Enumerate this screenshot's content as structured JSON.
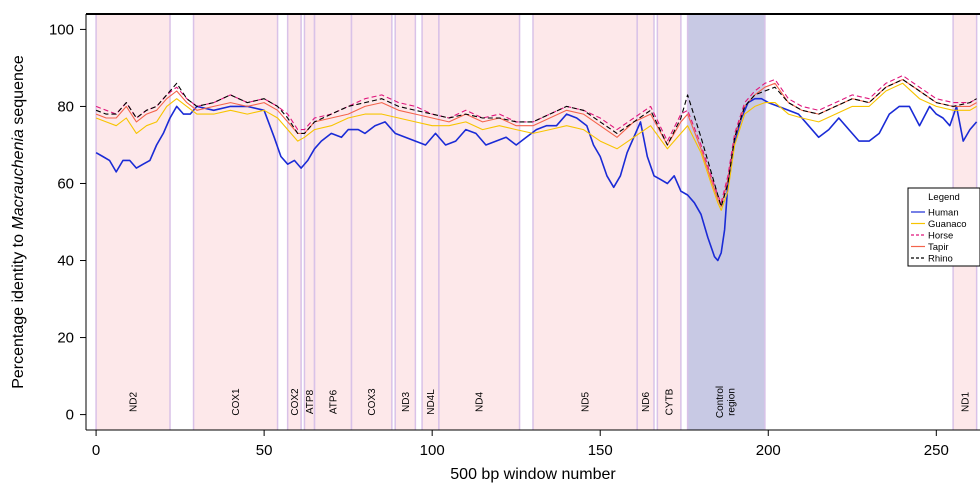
{
  "chart_data": {
    "type": "line",
    "xlabel": "500 bp window number",
    "ylabel_parts": [
      "Percentage identity to ",
      "Macrauchenia",
      " sequence"
    ],
    "xlim": [
      -3,
      263
    ],
    "ylim": [
      -4,
      104
    ],
    "xticks": [
      0,
      50,
      100,
      150,
      200,
      250
    ],
    "yticks": [
      0,
      20,
      40,
      60,
      80,
      100
    ],
    "legend": {
      "title": "Legend",
      "position": "right"
    },
    "regions": [
      {
        "label": "ND2",
        "start": 0,
        "end": 22,
        "color": "#fde8ea"
      },
      {
        "label": "COX1",
        "start": 29,
        "end": 54,
        "color": "#fde8ea"
      },
      {
        "label": "COX2",
        "start": 57,
        "end": 61,
        "color": "#fde8ea"
      },
      {
        "label": "ATP8",
        "start": 62,
        "end": 65,
        "color": "#fde8ea"
      },
      {
        "label": "ATP6",
        "start": 65,
        "end": 76,
        "color": "#fde8ea"
      },
      {
        "label": "COX3",
        "start": 76,
        "end": 88,
        "color": "#fde8ea"
      },
      {
        "label": "ND3",
        "start": 89,
        "end": 95,
        "color": "#fde8ea"
      },
      {
        "label": "ND4L",
        "start": 97,
        "end": 102,
        "color": "#fde8ea"
      },
      {
        "label": "ND4",
        "start": 102,
        "end": 126,
        "color": "#fde8ea"
      },
      {
        "label": "ND5",
        "start": 130,
        "end": 161,
        "color": "#fde8ea"
      },
      {
        "label": "ND6",
        "start": 161,
        "end": 166,
        "color": "#fde8ea"
      },
      {
        "label": "CYTB",
        "start": 167,
        "end": 174,
        "color": "#fde8ea"
      },
      {
        "label": "Control region",
        "start": 176,
        "end": 199,
        "color": "#c8c9e4"
      },
      {
        "label": "ND1",
        "start": 255,
        "end": 262,
        "color": "#fde8ea"
      }
    ],
    "series": [
      {
        "name": "Human",
        "color": "#1a2bd6",
        "dash": "",
        "width": 1.6,
        "x": [
          0,
          2,
          4,
          6,
          8,
          10,
          12,
          14,
          16,
          18,
          20,
          22,
          24,
          26,
          28,
          30,
          35,
          40,
          45,
          50,
          53,
          55,
          57,
          59,
          61,
          63,
          65,
          67,
          70,
          73,
          75,
          78,
          80,
          83,
          86,
          89,
          92,
          95,
          98,
          101,
          104,
          107,
          110,
          113,
          116,
          119,
          122,
          125,
          128,
          131,
          134,
          137,
          140,
          143,
          146,
          148,
          150,
          152,
          154,
          156,
          158,
          160,
          162,
          164,
          166,
          168,
          170,
          172,
          174,
          176,
          178,
          180,
          182,
          184,
          185,
          186,
          187,
          188,
          190,
          192,
          194,
          196,
          198,
          200,
          203,
          206,
          209,
          212,
          215,
          218,
          221,
          224,
          227,
          230,
          233,
          236,
          239,
          242,
          245,
          248,
          250,
          252,
          254,
          256,
          258,
          260,
          262
        ],
        "values": [
          68,
          67,
          66,
          63,
          66,
          66,
          64,
          65,
          66,
          70,
          73,
          77,
          80,
          78,
          78,
          80,
          79,
          80,
          80,
          79,
          72,
          67,
          65,
          66,
          64,
          66,
          69,
          71,
          73,
          72,
          74,
          74,
          73,
          75,
          76,
          73,
          72,
          71,
          70,
          73,
          70,
          71,
          74,
          73,
          70,
          71,
          72,
          70,
          72,
          74,
          75,
          75,
          78,
          77,
          75,
          70,
          67,
          62,
          59,
          62,
          68,
          72,
          76,
          67,
          62,
          61,
          60,
          62,
          58,
          57,
          55,
          52,
          46,
          41,
          40,
          42,
          48,
          60,
          71,
          77,
          81,
          82,
          82,
          81,
          80,
          79,
          78,
          75,
          72,
          74,
          77,
          74,
          71,
          71,
          73,
          78,
          80,
          80,
          75,
          80,
          78,
          77,
          75,
          80,
          71,
          74,
          76
        ]
      },
      {
        "name": "Guanaco",
        "color": "#f7c400",
        "dash": "",
        "width": 1.1,
        "x": [
          0,
          3,
          6,
          9,
          12,
          15,
          18,
          21,
          24,
          27,
          30,
          35,
          40,
          45,
          50,
          54,
          57,
          60,
          62,
          65,
          70,
          75,
          80,
          85,
          90,
          95,
          100,
          105,
          110,
          115,
          120,
          125,
          130,
          135,
          140,
          145,
          150,
          155,
          160,
          165,
          170,
          174,
          176,
          180,
          183,
          185,
          186,
          188,
          190,
          193,
          196,
          199,
          202,
          206,
          210,
          215,
          220,
          225,
          230,
          235,
          240,
          245,
          250,
          255,
          260,
          262
        ],
        "values": [
          77,
          76,
          75,
          77,
          73,
          75,
          76,
          80,
          82,
          80,
          78,
          78,
          79,
          78,
          79,
          77,
          74,
          71,
          72,
          74,
          75,
          77,
          78,
          78,
          77,
          76,
          75,
          75,
          76,
          74,
          75,
          74,
          73,
          74,
          75,
          74,
          71,
          69,
          72,
          75,
          69,
          73,
          75,
          68,
          60,
          55,
          53,
          58,
          70,
          78,
          80,
          81,
          81,
          78,
          77,
          76,
          78,
          80,
          80,
          84,
          86,
          82,
          80,
          79,
          79,
          80
        ]
      },
      {
        "name": "Horse",
        "color": "#e0167c",
        "dash": "5,3",
        "width": 1.1,
        "x": [
          0,
          3,
          6,
          9,
          12,
          15,
          18,
          21,
          24,
          27,
          30,
          35,
          40,
          45,
          50,
          54,
          57,
          60,
          62,
          65,
          70,
          75,
          80,
          85,
          90,
          95,
          100,
          105,
          110,
          115,
          120,
          125,
          130,
          135,
          140,
          145,
          150,
          155,
          160,
          165,
          170,
          174,
          176,
          180,
          183,
          185,
          186,
          188,
          190,
          193,
          196,
          199,
          202,
          206,
          210,
          215,
          220,
          225,
          230,
          235,
          240,
          245,
          250,
          255,
          260,
          262
        ],
        "values": [
          80,
          79,
          78,
          81,
          77,
          79,
          80,
          83,
          85,
          82,
          80,
          81,
          83,
          81,
          82,
          80,
          78,
          74,
          74,
          77,
          78,
          80,
          82,
          83,
          81,
          80,
          78,
          77,
          79,
          77,
          78,
          76,
          76,
          78,
          80,
          79,
          77,
          74,
          77,
          80,
          71,
          78,
          79,
          70,
          62,
          57,
          55,
          62,
          73,
          81,
          84,
          86,
          87,
          82,
          80,
          79,
          81,
          83,
          82,
          86,
          88,
          85,
          82,
          81,
          81,
          82
        ]
      },
      {
        "name": "Tapir",
        "color": "#f4644c",
        "dash": "",
        "width": 1.1,
        "x": [
          0,
          3,
          6,
          9,
          12,
          15,
          18,
          21,
          24,
          27,
          30,
          35,
          40,
          45,
          50,
          54,
          57,
          60,
          62,
          65,
          70,
          75,
          80,
          85,
          90,
          95,
          100,
          105,
          110,
          115,
          120,
          125,
          130,
          135,
          140,
          145,
          150,
          155,
          160,
          165,
          170,
          174,
          176,
          180,
          183,
          185,
          186,
          188,
          190,
          193,
          196,
          199,
          202,
          206,
          210,
          215,
          220,
          225,
          230,
          235,
          240,
          245,
          250,
          255,
          260,
          262
        ],
        "values": [
          78,
          77,
          77,
          80,
          76,
          78,
          79,
          82,
          84,
          81,
          79,
          80,
          81,
          80,
          81,
          79,
          76,
          73,
          73,
          76,
          77,
          78,
          80,
          81,
          79,
          78,
          77,
          76,
          78,
          76,
          77,
          75,
          75,
          77,
          79,
          78,
          75,
          72,
          76,
          78,
          70,
          76,
          78,
          69,
          61,
          56,
          54,
          61,
          72,
          80,
          83,
          85,
          86,
          81,
          79,
          78,
          80,
          82,
          81,
          85,
          87,
          84,
          81,
          80,
          80,
          81
        ]
      },
      {
        "name": "Rhino",
        "color": "#000000",
        "dash": "5,3",
        "width": 1.1,
        "x": [
          0,
          3,
          6,
          9,
          12,
          15,
          18,
          21,
          24,
          27,
          30,
          35,
          40,
          45,
          50,
          54,
          57,
          60,
          62,
          65,
          70,
          75,
          80,
          85,
          90,
          95,
          100,
          105,
          110,
          115,
          120,
          125,
          130,
          135,
          140,
          145,
          150,
          155,
          160,
          165,
          170,
          174,
          176,
          180,
          183,
          185,
          186,
          188,
          190,
          193,
          196,
          199,
          202,
          206,
          210,
          215,
          220,
          225,
          230,
          235,
          240,
          245,
          250,
          255,
          260,
          262
        ],
        "values": [
          79,
          78,
          78,
          81,
          77,
          79,
          80,
          83,
          86,
          82,
          80,
          81,
          83,
          81,
          82,
          80,
          77,
          73,
          73,
          76,
          78,
          80,
          81,
          82,
          80,
          79,
          78,
          77,
          78,
          77,
          77,
          76,
          76,
          78,
          80,
          79,
          76,
          73,
          76,
          79,
          70,
          77,
          83,
          72,
          63,
          57,
          54,
          60,
          72,
          80,
          83,
          84,
          85,
          81,
          79,
          78,
          80,
          82,
          81,
          85,
          87,
          84,
          81,
          80,
          81,
          82
        ]
      }
    ]
  }
}
